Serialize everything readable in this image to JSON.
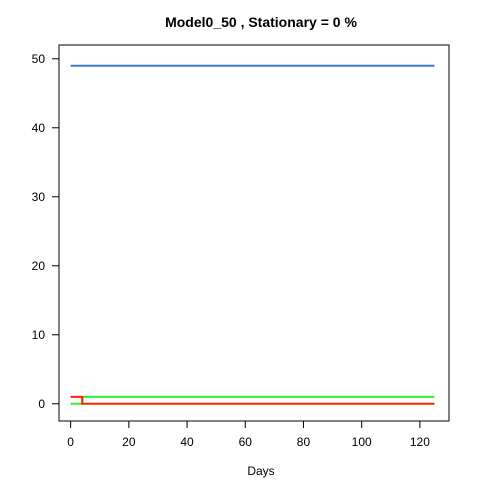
{
  "chart_data": {
    "type": "line",
    "title": "Model0_50 , Stationary = 0 %",
    "xlabel": "Days",
    "ylabel": "",
    "xlim": [
      -4,
      130
    ],
    "ylim": [
      -2.5,
      52
    ],
    "xticks": [
      0,
      20,
      40,
      60,
      80,
      100,
      120
    ],
    "yticks": [
      0,
      10,
      20,
      30,
      40,
      50
    ],
    "grid": false,
    "series": [
      {
        "color": "#3b78c8",
        "x": [
          0,
          125
        ],
        "y": [
          49,
          49
        ]
      },
      {
        "color": "#33ee33",
        "x": [
          0,
          4,
          4,
          125
        ],
        "y": [
          0,
          0,
          1,
          1
        ]
      },
      {
        "color": "#ff2200",
        "x": [
          0,
          4,
          4,
          125
        ],
        "y": [
          1,
          1,
          0,
          0
        ]
      }
    ]
  }
}
